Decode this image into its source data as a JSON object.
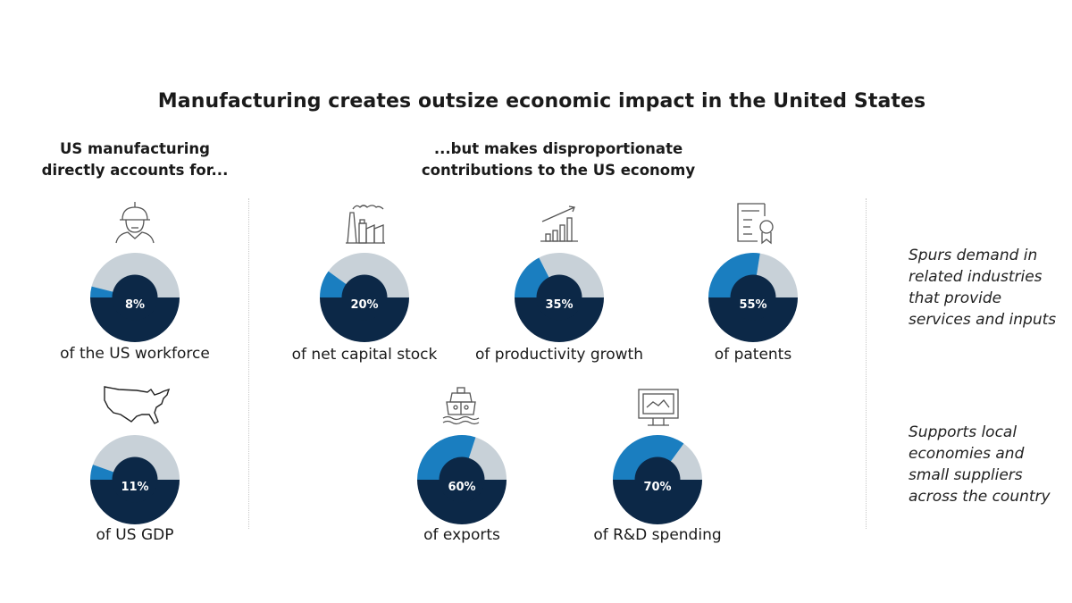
{
  "chart_data": {
    "type": "pie",
    "title": "Manufacturing creates outsize economic impact in the United States",
    "subtitle_left": "US manufacturing directly accounts for...",
    "subtitle_right": "...but makes disproportionate contributions to the US economy",
    "colors": {
      "filled": "#1a7ec0",
      "remaining": "#c8d1d8",
      "base": "#0c2847",
      "value_text": "#ffffff"
    },
    "items": [
      {
        "id": "workforce",
        "group": "direct",
        "icon": "worker-hardhat-icon",
        "value": 8,
        "value_label": "8%",
        "label": "of the US workforce"
      },
      {
        "id": "gdp",
        "group": "direct",
        "icon": "us-map-icon",
        "value": 11,
        "value_label": "11%",
        "label": "of US GDP"
      },
      {
        "id": "capital",
        "group": "contribution",
        "icon": "factory-icon",
        "value": 20,
        "value_label": "20%",
        "label": "of net capital stock"
      },
      {
        "id": "productivity",
        "group": "contribution",
        "icon": "growth-chart-icon",
        "value": 35,
        "value_label": "35%",
        "label": "of productivity growth"
      },
      {
        "id": "patents",
        "group": "contribution",
        "icon": "certificate-icon",
        "value": 55,
        "value_label": "55%",
        "label": "of patents"
      },
      {
        "id": "exports",
        "group": "contribution",
        "icon": "ship-icon",
        "value": 60,
        "value_label": "60%",
        "label": "of exports"
      },
      {
        "id": "rnd",
        "group": "contribution",
        "icon": "monitor-chart-icon",
        "value": 70,
        "value_label": "70%",
        "label": "of R&D spending"
      }
    ],
    "notes": [
      "Spurs demand in related industries that provide services and inputs",
      "Supports local economies and small suppliers across the country"
    ]
  }
}
